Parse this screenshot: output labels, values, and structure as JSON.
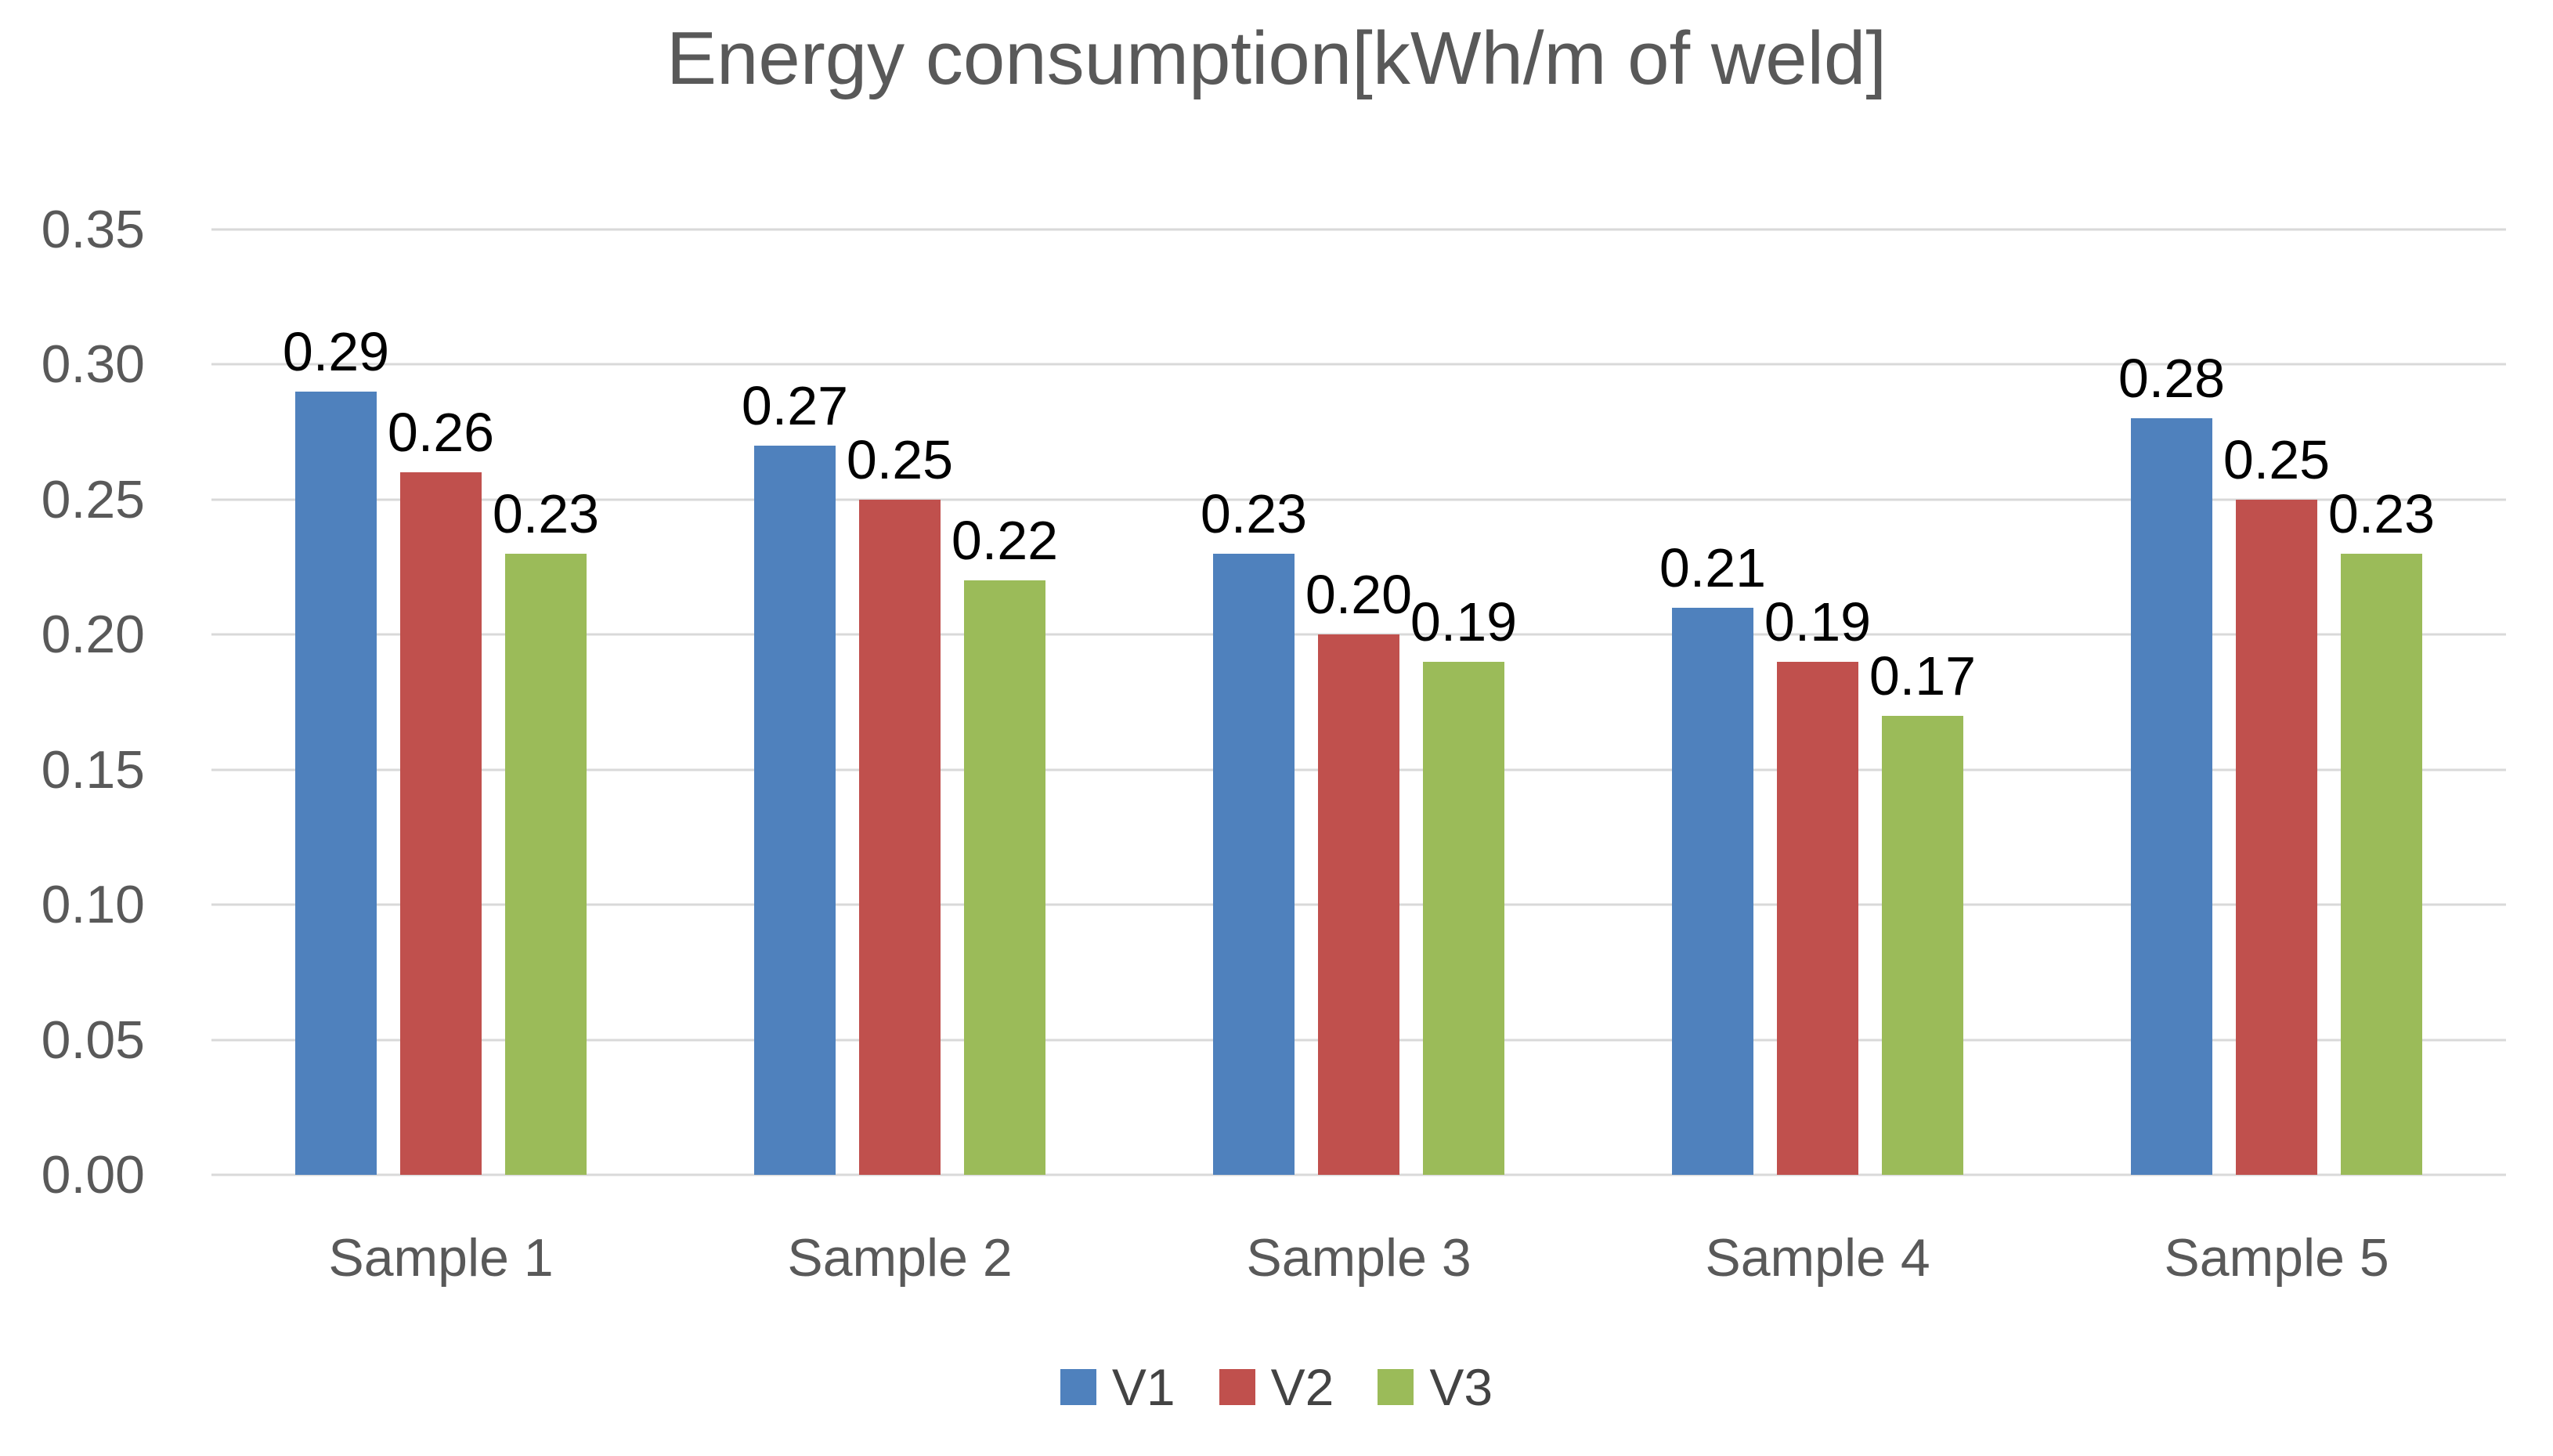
{
  "chart_data": {
    "type": "bar",
    "title": "Energy consumption[kWh/m of weld]",
    "categories": [
      "Sample 1",
      "Sample 2",
      "Sample 3",
      "Sample 4",
      "Sample 5"
    ],
    "series": [
      {
        "name": "V1",
        "color": "#4F81BD",
        "values": [
          0.29,
          0.27,
          0.23,
          0.21,
          0.28
        ]
      },
      {
        "name": "V2",
        "color": "#C0504D",
        "values": [
          0.26,
          0.25,
          0.2,
          0.19,
          0.25
        ]
      },
      {
        "name": "V3",
        "color": "#9BBB59",
        "values": [
          0.23,
          0.22,
          0.19,
          0.17,
          0.23
        ]
      }
    ],
    "data_labels": [
      "0.29",
      "0.26",
      "0.23",
      "0.27",
      "0.25",
      "0.22",
      "0.23",
      "0.20",
      "0.19",
      "0.21",
      "0.19",
      "0.17",
      "0.28",
      "0.25",
      "0.23"
    ],
    "decimals": 2,
    "xlabel": "",
    "ylabel": "",
    "ylim": [
      0,
      0.35
    ],
    "y_ticks": [
      0.0,
      0.05,
      0.1,
      0.15,
      0.2,
      0.25,
      0.3,
      0.35
    ],
    "grid": "horizontal",
    "legend_position": "bottom",
    "legend_labels": [
      "V1",
      "V2",
      "V3"
    ],
    "colors": {
      "title_text": "#595959",
      "axis_text": "#595959",
      "legend_text": "#434343",
      "data_label_text": "#000000",
      "gridline": "#D9D9D9",
      "background": "#FFFFFF"
    }
  }
}
